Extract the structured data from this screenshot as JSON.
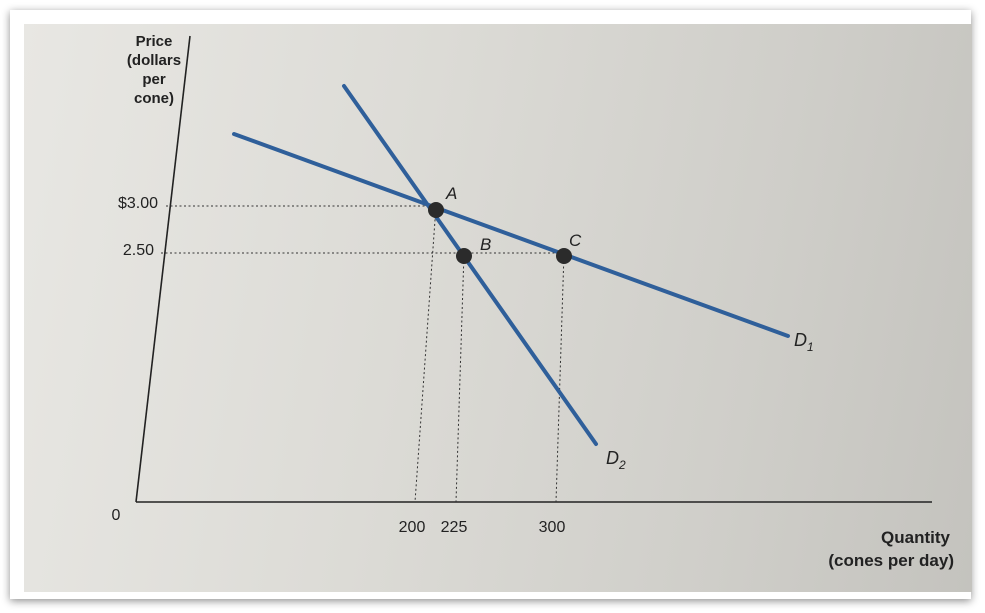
{
  "chart_data": {
    "type": "line",
    "title": "",
    "ylabel": [
      "Price",
      "(dollars",
      "per",
      "cone)"
    ],
    "xlabel": [
      "Quantity",
      "(cones per day)"
    ],
    "origin_label": "0",
    "y_ticks": [
      {
        "value": 3.0,
        "label": "$3.00"
      },
      {
        "value": 2.5,
        "label": "2.50"
      }
    ],
    "x_ticks": [
      {
        "value": 200,
        "label": "200"
      },
      {
        "value": 225,
        "label": "225"
      },
      {
        "value": 300,
        "label": "300"
      }
    ],
    "series": [
      {
        "name": "D1",
        "label_main": "D",
        "label_sub": "1",
        "color": "#2f5f9a"
      },
      {
        "name": "D2",
        "label_main": "D",
        "label_sub": "2",
        "color": "#2f5f9a"
      }
    ],
    "points": [
      {
        "label": "A",
        "x": 200,
        "y": 3.0
      },
      {
        "label": "B",
        "x": 225,
        "y": 2.5
      },
      {
        "label": "C",
        "x": 300,
        "y": 2.5
      }
    ],
    "grid": false
  }
}
